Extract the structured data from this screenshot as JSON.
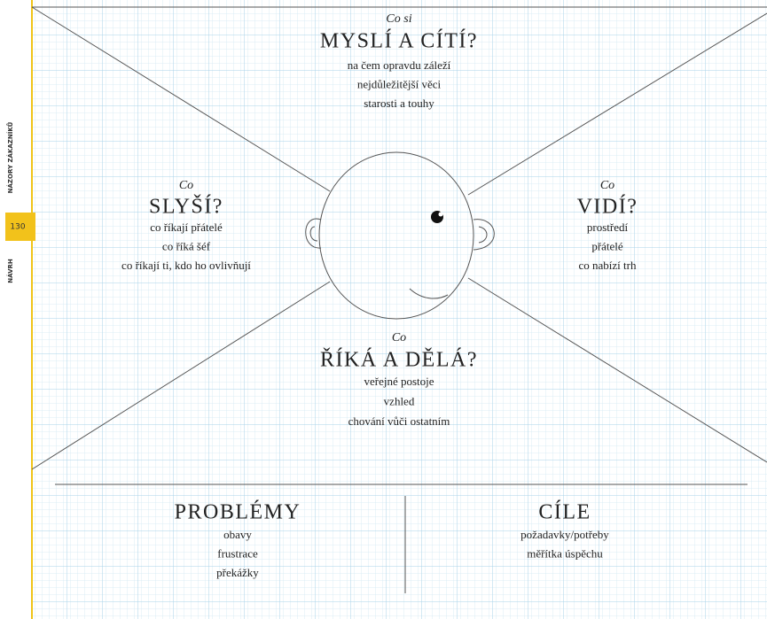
{
  "sidebar": {
    "section": "NÁZORY ZÁKAZNÍKŮ",
    "page_number": "130",
    "chapter": "NÁVRH"
  },
  "quadrants": [
    {
      "prefix": "Co si",
      "heading": "MYSLÍ A CÍTÍ?",
      "items": [
        "na čem opravdu záleží",
        "nejdůležitější věci",
        "starosti a touhy"
      ]
    },
    {
      "prefix": "Co",
      "heading": "SLYŠÍ?",
      "items": [
        "co říkají přátelé",
        "co říká šéf",
        "co říkají ti, kdo ho ovlivňují"
      ]
    },
    {
      "prefix": "Co",
      "heading": "VIDÍ?",
      "items": [
        "prostředí",
        "přátelé",
        "co nabízí trh"
      ]
    },
    {
      "prefix": "Co",
      "heading": "ŘÍKÁ A DĚLÁ?",
      "items": [
        "veřejné postoje",
        "vzhled",
        "chování vůči ostatním"
      ]
    }
  ],
  "bottom": [
    {
      "heading": "PROBLÉMY",
      "items": [
        "obavy",
        "frustrace",
        "překážky"
      ]
    },
    {
      "heading": "CÍLE",
      "items": [
        "požadavky/potřeby",
        "měřítka úspěchu"
      ]
    }
  ]
}
